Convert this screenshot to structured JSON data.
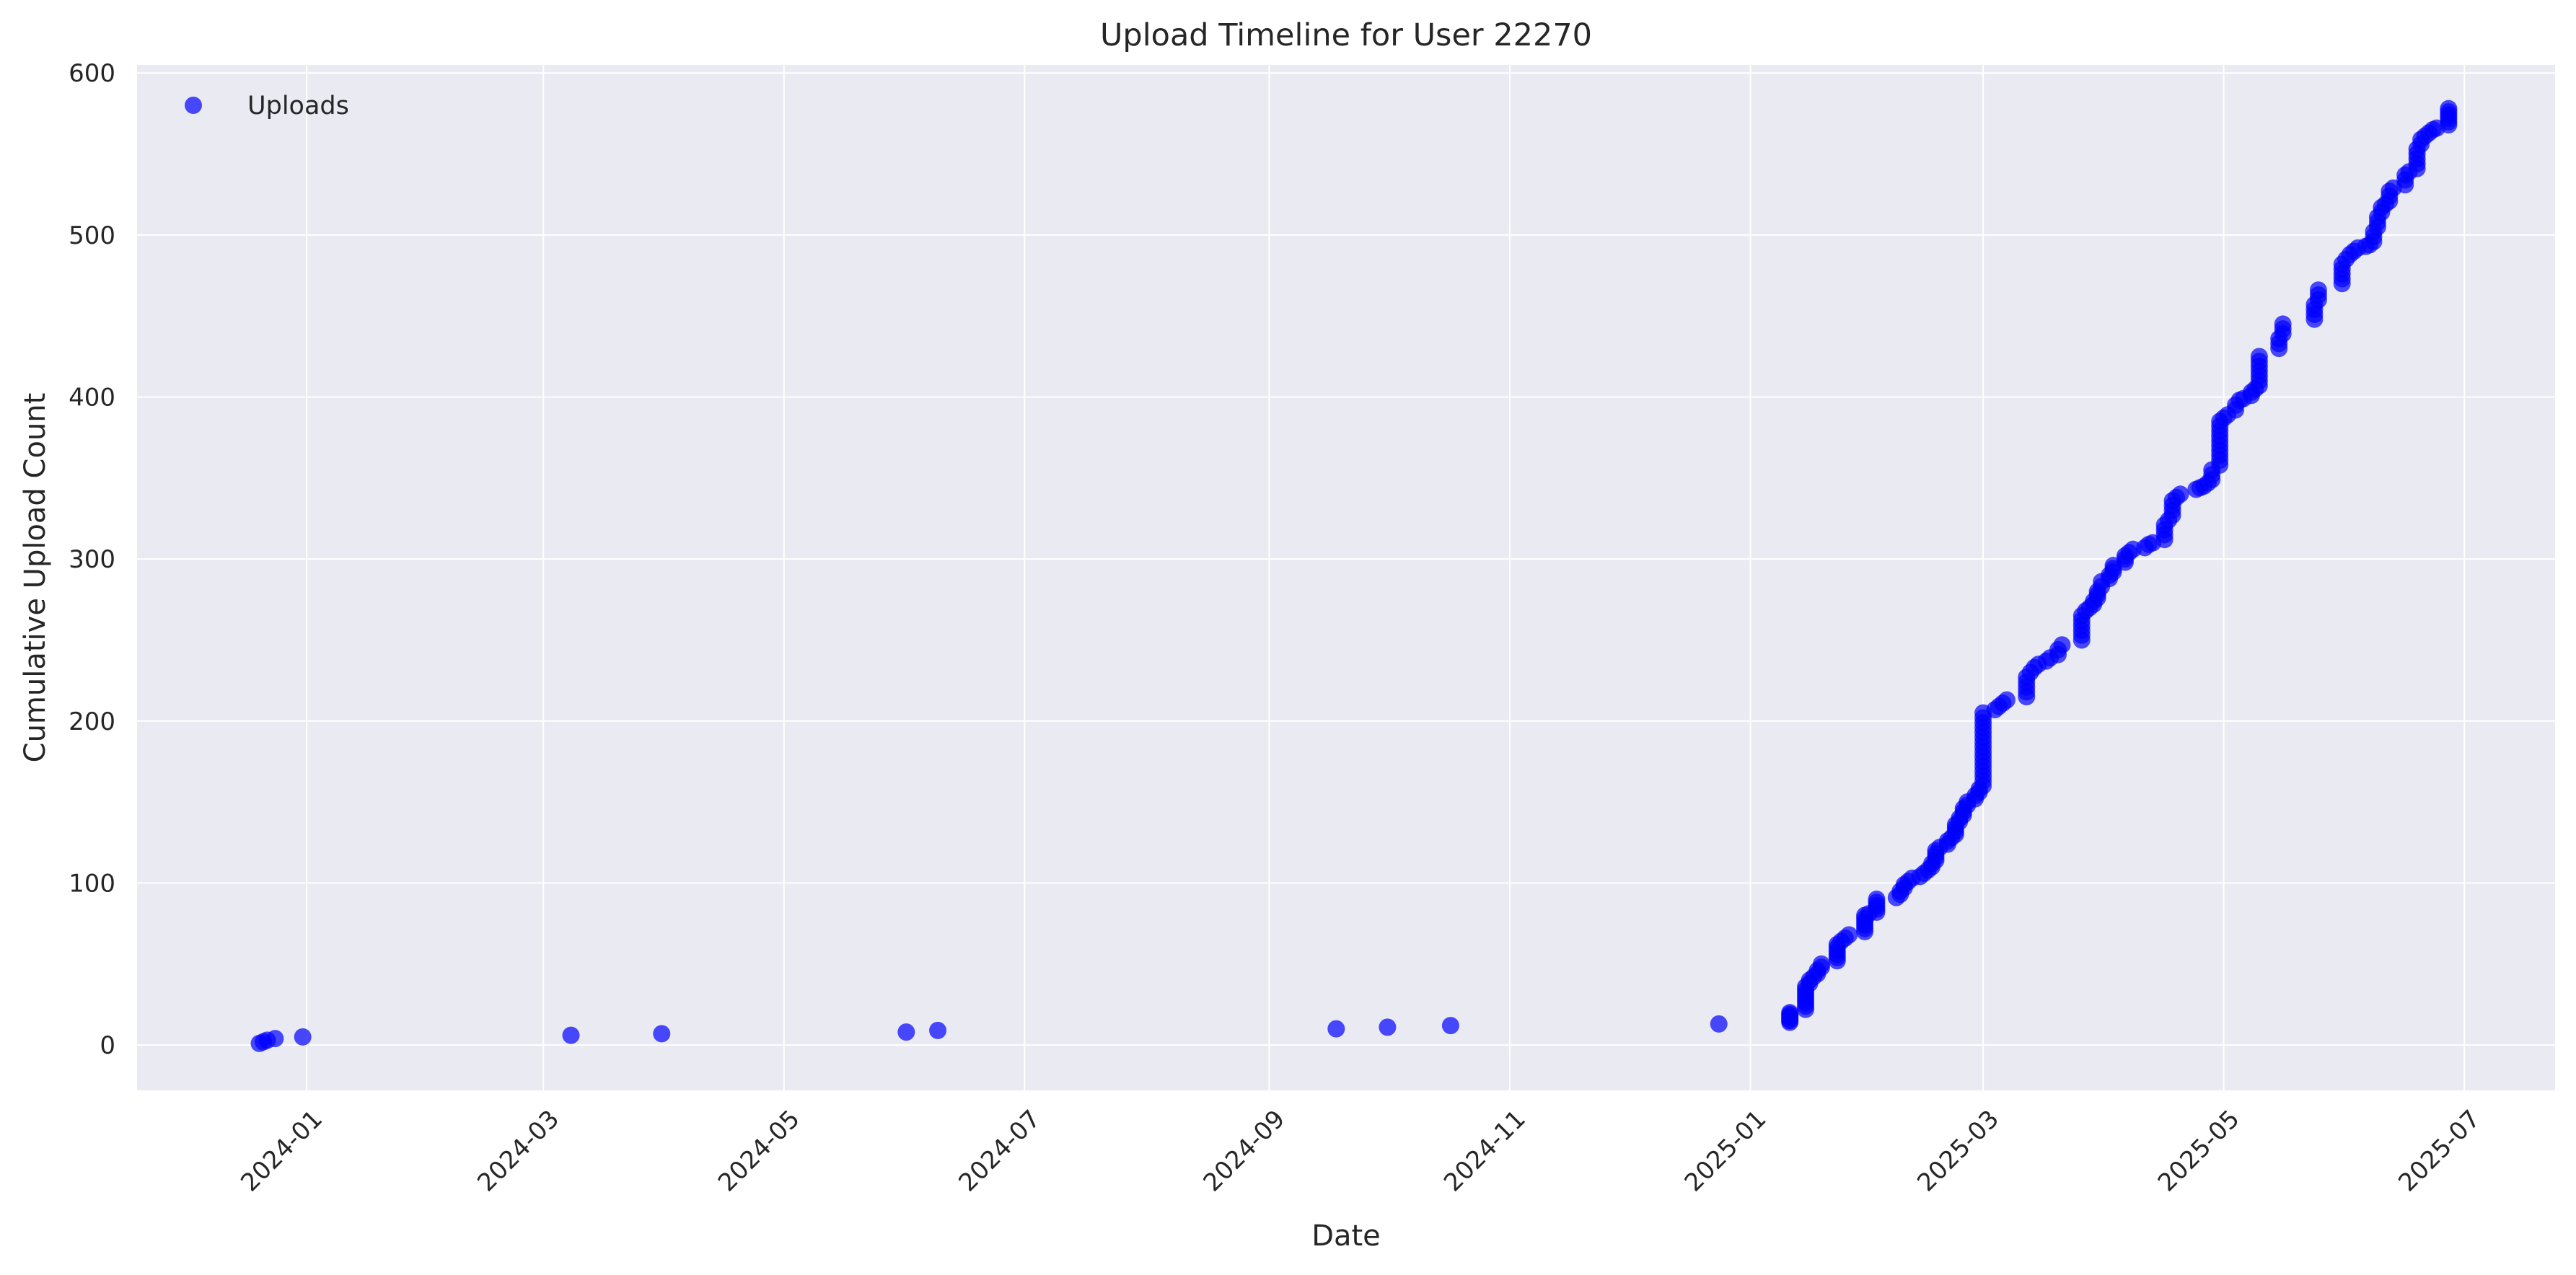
{
  "chart_data": {
    "type": "scatter",
    "title": "Upload Timeline for User 22270",
    "xlabel": "Date",
    "ylabel": "Cumulative Upload Count",
    "x_type": "date",
    "xlim": [
      "2023-11-19",
      "2025-07-24"
    ],
    "ylim": [
      -28,
      605
    ],
    "x_ticks": [
      "2024-01-01",
      "2024-03-01",
      "2024-05-01",
      "2024-07-01",
      "2024-09-01",
      "2024-11-01",
      "2025-01-01",
      "2025-03-01",
      "2025-05-01",
      "2025-07-01"
    ],
    "x_tick_labels": [
      "2024-01",
      "2024-03",
      "2024-05",
      "2024-07",
      "2024-09",
      "2024-11",
      "2025-01",
      "2025-03",
      "2025-05",
      "2025-07"
    ],
    "y_ticks": [
      0,
      100,
      200,
      300,
      400,
      500,
      600
    ],
    "y_tick_labels": [
      "0",
      "100",
      "200",
      "300",
      "400",
      "500",
      "600"
    ],
    "grid": true,
    "background_color": "#EAEAF2",
    "grid_color": "#FFFFFF",
    "marker_color": "#0000FF",
    "marker_alpha": 0.7,
    "legend_position": "upper-left",
    "series": [
      {
        "name": "Uploads",
        "color": "#0000FF",
        "points": [
          [
            "2023-12-20",
            1
          ],
          [
            "2023-12-21",
            2
          ],
          [
            "2023-12-22",
            3
          ],
          [
            "2023-12-24",
            4
          ],
          [
            "2023-12-31",
            5
          ],
          [
            "2024-03-08",
            6
          ],
          [
            "2024-03-31",
            7
          ],
          [
            "2024-06-01",
            8
          ],
          [
            "2024-06-09",
            9
          ],
          [
            "2024-09-18",
            10
          ],
          [
            "2024-10-01",
            11
          ],
          [
            "2024-10-17",
            12
          ],
          [
            "2024-12-24",
            13
          ],
          [
            "2025-01-11",
            14
          ],
          [
            "2025-01-11",
            15
          ],
          [
            "2025-01-11",
            16
          ],
          [
            "2025-01-11",
            17
          ],
          [
            "2025-01-11",
            18
          ],
          [
            "2025-01-11",
            19
          ],
          [
            "2025-01-11",
            20
          ],
          [
            "2025-01-15",
            22
          ],
          [
            "2025-01-15",
            24
          ],
          [
            "2025-01-15",
            26
          ],
          [
            "2025-01-15",
            28
          ],
          [
            "2025-01-15",
            30
          ],
          [
            "2025-01-15",
            32
          ],
          [
            "2025-01-15",
            34
          ],
          [
            "2025-01-15",
            36
          ],
          [
            "2025-01-16",
            38
          ],
          [
            "2025-01-16",
            40
          ],
          [
            "2025-01-17",
            42
          ],
          [
            "2025-01-18",
            44
          ],
          [
            "2025-01-18",
            46
          ],
          [
            "2025-01-19",
            48
          ],
          [
            "2025-01-19",
            50
          ],
          [
            "2025-01-23",
            52
          ],
          [
            "2025-01-23",
            54
          ],
          [
            "2025-01-23",
            56
          ],
          [
            "2025-01-23",
            58
          ],
          [
            "2025-01-23",
            60
          ],
          [
            "2025-01-23",
            62
          ],
          [
            "2025-01-24",
            64
          ],
          [
            "2025-01-25",
            66
          ],
          [
            "2025-01-26",
            68
          ],
          [
            "2025-01-30",
            70
          ],
          [
            "2025-01-30",
            72
          ],
          [
            "2025-01-30",
            74
          ],
          [
            "2025-01-30",
            76
          ],
          [
            "2025-01-30",
            78
          ],
          [
            "2025-01-30",
            80
          ],
          [
            "2025-01-31",
            81
          ],
          [
            "2025-02-02",
            82
          ],
          [
            "2025-02-02",
            84
          ],
          [
            "2025-02-02",
            86
          ],
          [
            "2025-02-02",
            88
          ],
          [
            "2025-02-02",
            90
          ],
          [
            "2025-02-07",
            91
          ],
          [
            "2025-02-08",
            93
          ],
          [
            "2025-02-08",
            95
          ],
          [
            "2025-02-09",
            97
          ],
          [
            "2025-02-09",
            99
          ],
          [
            "2025-02-10",
            101
          ],
          [
            "2025-02-11",
            103
          ],
          [
            "2025-02-13",
            104
          ],
          [
            "2025-02-14",
            106
          ],
          [
            "2025-02-15",
            108
          ],
          [
            "2025-02-16",
            110
          ],
          [
            "2025-02-16",
            112
          ],
          [
            "2025-02-17",
            114
          ],
          [
            "2025-02-17",
            116
          ],
          [
            "2025-02-17",
            118
          ],
          [
            "2025-02-17",
            120
          ],
          [
            "2025-02-18",
            122
          ],
          [
            "2025-02-20",
            124
          ],
          [
            "2025-02-20",
            126
          ],
          [
            "2025-02-21",
            128
          ],
          [
            "2025-02-22",
            130
          ],
          [
            "2025-02-22",
            132
          ],
          [
            "2025-02-22",
            134
          ],
          [
            "2025-02-22",
            136
          ],
          [
            "2025-02-23",
            138
          ],
          [
            "2025-02-23",
            140
          ],
          [
            "2025-02-24",
            142
          ],
          [
            "2025-02-24",
            144
          ],
          [
            "2025-02-24",
            146
          ],
          [
            "2025-02-25",
            148
          ],
          [
            "2025-02-25",
            150
          ],
          [
            "2025-02-27",
            152
          ],
          [
            "2025-02-27",
            154
          ],
          [
            "2025-02-28",
            156
          ],
          [
            "2025-02-28",
            158
          ],
          [
            "2025-03-01",
            160
          ],
          [
            "2025-03-01",
            163
          ],
          [
            "2025-03-01",
            166
          ],
          [
            "2025-03-01",
            169
          ],
          [
            "2025-03-01",
            172
          ],
          [
            "2025-03-01",
            175
          ],
          [
            "2025-03-01",
            178
          ],
          [
            "2025-03-01",
            181
          ],
          [
            "2025-03-01",
            184
          ],
          [
            "2025-03-01",
            187
          ],
          [
            "2025-03-01",
            190
          ],
          [
            "2025-03-01",
            193
          ],
          [
            "2025-03-01",
            196
          ],
          [
            "2025-03-01",
            199
          ],
          [
            "2025-03-01",
            202
          ],
          [
            "2025-03-01",
            205
          ],
          [
            "2025-03-04",
            207
          ],
          [
            "2025-03-05",
            209
          ],
          [
            "2025-03-06",
            211
          ],
          [
            "2025-03-07",
            213
          ],
          [
            "2025-03-12",
            215
          ],
          [
            "2025-03-12",
            218
          ],
          [
            "2025-03-12",
            221
          ],
          [
            "2025-03-12",
            224
          ],
          [
            "2025-03-12",
            227
          ],
          [
            "2025-03-13",
            230
          ],
          [
            "2025-03-14",
            233
          ],
          [
            "2025-03-15",
            235
          ],
          [
            "2025-03-17",
            237
          ],
          [
            "2025-03-18",
            239
          ],
          [
            "2025-03-20",
            241
          ],
          [
            "2025-03-20",
            244
          ],
          [
            "2025-03-21",
            247
          ],
          [
            "2025-03-26",
            250
          ],
          [
            "2025-03-26",
            253
          ],
          [
            "2025-03-26",
            256
          ],
          [
            "2025-03-26",
            259
          ],
          [
            "2025-03-26",
            262
          ],
          [
            "2025-03-26",
            265
          ],
          [
            "2025-03-27",
            268
          ],
          [
            "2025-03-28",
            270
          ],
          [
            "2025-03-29",
            272
          ],
          [
            "2025-03-29",
            274
          ],
          [
            "2025-03-30",
            276
          ],
          [
            "2025-03-30",
            278
          ],
          [
            "2025-03-30",
            280
          ],
          [
            "2025-03-31",
            283
          ],
          [
            "2025-03-31",
            286
          ],
          [
            "2025-04-02",
            288
          ],
          [
            "2025-04-02",
            290
          ],
          [
            "2025-04-03",
            292
          ],
          [
            "2025-04-03",
            294
          ],
          [
            "2025-04-03",
            296
          ],
          [
            "2025-04-06",
            298
          ],
          [
            "2025-04-06",
            300
          ],
          [
            "2025-04-06",
            302
          ],
          [
            "2025-04-07",
            304
          ],
          [
            "2025-04-08",
            306
          ],
          [
            "2025-04-11",
            307
          ],
          [
            "2025-04-12",
            309
          ],
          [
            "2025-04-13",
            310
          ],
          [
            "2025-04-16",
            312
          ],
          [
            "2025-04-16",
            315
          ],
          [
            "2025-04-16",
            318
          ],
          [
            "2025-04-16",
            321
          ],
          [
            "2025-04-17",
            324
          ],
          [
            "2025-04-18",
            327
          ],
          [
            "2025-04-18",
            330
          ],
          [
            "2025-04-18",
            333
          ],
          [
            "2025-04-18",
            336
          ],
          [
            "2025-04-19",
            338
          ],
          [
            "2025-04-20",
            340
          ],
          [
            "2025-04-24",
            343
          ],
          [
            "2025-04-25",
            344
          ],
          [
            "2025-04-26",
            345
          ],
          [
            "2025-04-27",
            347
          ],
          [
            "2025-04-28",
            349
          ],
          [
            "2025-04-28",
            352
          ],
          [
            "2025-04-28",
            355
          ],
          [
            "2025-04-30",
            358
          ],
          [
            "2025-04-30",
            361
          ],
          [
            "2025-04-30",
            364
          ],
          [
            "2025-04-30",
            367
          ],
          [
            "2025-04-30",
            370
          ],
          [
            "2025-04-30",
            373
          ],
          [
            "2025-04-30",
            376
          ],
          [
            "2025-04-30",
            379
          ],
          [
            "2025-04-30",
            382
          ],
          [
            "2025-04-30",
            385
          ],
          [
            "2025-05-01",
            387
          ],
          [
            "2025-05-02",
            389
          ],
          [
            "2025-05-04",
            392
          ],
          [
            "2025-05-04",
            395
          ],
          [
            "2025-05-05",
            398
          ],
          [
            "2025-05-06",
            399
          ],
          [
            "2025-05-08",
            401
          ],
          [
            "2025-05-08",
            403
          ],
          [
            "2025-05-09",
            405
          ],
          [
            "2025-05-10",
            407
          ],
          [
            "2025-05-10",
            410
          ],
          [
            "2025-05-10",
            413
          ],
          [
            "2025-05-10",
            416
          ],
          [
            "2025-05-10",
            419
          ],
          [
            "2025-05-10",
            422
          ],
          [
            "2025-05-10",
            425
          ],
          [
            "2025-05-15",
            430
          ],
          [
            "2025-05-15",
            433
          ],
          [
            "2025-05-15",
            436
          ],
          [
            "2025-05-16",
            439
          ],
          [
            "2025-05-16",
            442
          ],
          [
            "2025-05-16",
            445
          ],
          [
            "2025-05-24",
            448
          ],
          [
            "2025-05-24",
            451
          ],
          [
            "2025-05-24",
            454
          ],
          [
            "2025-05-24",
            457
          ],
          [
            "2025-05-25",
            460
          ],
          [
            "2025-05-25",
            463
          ],
          [
            "2025-05-25",
            466
          ],
          [
            "2025-05-31",
            470
          ],
          [
            "2025-05-31",
            473
          ],
          [
            "2025-05-31",
            476
          ],
          [
            "2025-05-31",
            479
          ],
          [
            "2025-05-31",
            482
          ],
          [
            "2025-06-01",
            485
          ],
          [
            "2025-06-02",
            488
          ],
          [
            "2025-06-03",
            490
          ],
          [
            "2025-06-04",
            492
          ],
          [
            "2025-06-06",
            493
          ],
          [
            "2025-06-07",
            494
          ],
          [
            "2025-06-08",
            496
          ],
          [
            "2025-06-08",
            499
          ],
          [
            "2025-06-08",
            502
          ],
          [
            "2025-06-09",
            505
          ],
          [
            "2025-06-09",
            508
          ],
          [
            "2025-06-09",
            511
          ],
          [
            "2025-06-10",
            514
          ],
          [
            "2025-06-10",
            517
          ],
          [
            "2025-06-11",
            519
          ],
          [
            "2025-06-12",
            521
          ],
          [
            "2025-06-12",
            524
          ],
          [
            "2025-06-12",
            527
          ],
          [
            "2025-06-13",
            529
          ],
          [
            "2025-06-16",
            531
          ],
          [
            "2025-06-16",
            534
          ],
          [
            "2025-06-16",
            537
          ],
          [
            "2025-06-17",
            539
          ],
          [
            "2025-06-19",
            541
          ],
          [
            "2025-06-19",
            544
          ],
          [
            "2025-06-19",
            547
          ],
          [
            "2025-06-19",
            550
          ],
          [
            "2025-06-19",
            553
          ],
          [
            "2025-06-20",
            556
          ],
          [
            "2025-06-20",
            559
          ],
          [
            "2025-06-21",
            561
          ],
          [
            "2025-06-22",
            563
          ],
          [
            "2025-06-23",
            565
          ],
          [
            "2025-06-24",
            566
          ],
          [
            "2025-06-27",
            568
          ],
          [
            "2025-06-27",
            570
          ],
          [
            "2025-06-27",
            572
          ],
          [
            "2025-06-27",
            574
          ],
          [
            "2025-06-27",
            576
          ],
          [
            "2025-06-27",
            578
          ]
        ]
      }
    ]
  }
}
